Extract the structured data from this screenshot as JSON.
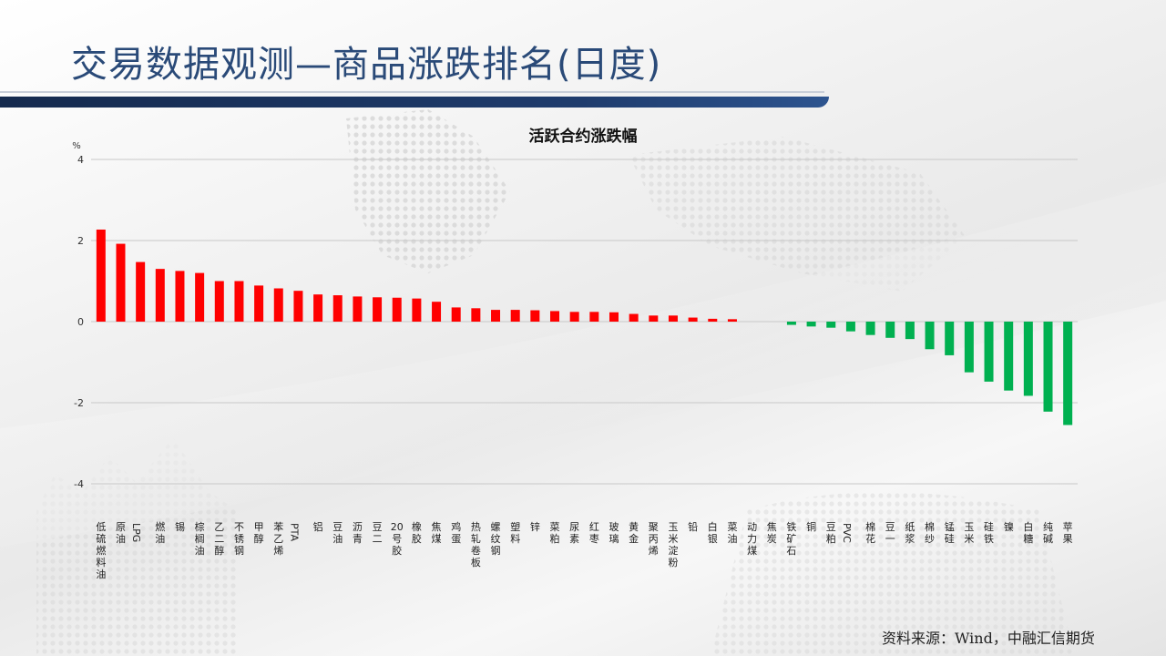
{
  "slide": {
    "title": "交易数据观测—商品涨跌排名(日度)",
    "source": "资料来源：Wind，中融汇信期货"
  },
  "colors": {
    "up": "#ff0000",
    "down": "#00b050",
    "title": "#2a4a78",
    "bar": "#1f3c6d"
  },
  "chart_data": {
    "type": "bar",
    "title": "活跃合约涨跌幅",
    "ylabel": "%",
    "xlabel": "",
    "ylim": [
      -4,
      4
    ],
    "yticks": [
      4,
      2,
      0,
      -2,
      -4
    ],
    "grid": true,
    "categories": [
      "低硫燃料油",
      "原油",
      "LPG",
      "燃油",
      "锡",
      "棕榈油",
      "乙二醇",
      "不锈钢",
      "甲醇",
      "苯乙烯",
      "PTA",
      "铝",
      "豆油",
      "沥青",
      "豆二",
      "20号胶",
      "橡胶",
      "焦煤",
      "鸡蛋",
      "热轧卷板",
      "螺纹钢",
      "塑料",
      "锌",
      "菜粕",
      "尿素",
      "红枣",
      "玻璃",
      "黄金",
      "聚丙烯",
      "玉米淀粉",
      "铅",
      "白银",
      "菜油",
      "动力煤",
      "焦炭",
      "铁矿石",
      "铜",
      "豆粕",
      "PVC",
      "棉花",
      "豆一",
      "纸浆",
      "棉纱",
      "锰硅",
      "玉米",
      "硅铁",
      "镍",
      "白糖",
      "纯碱",
      "苹果"
    ],
    "values": [
      2.27,
      1.92,
      1.47,
      1.3,
      1.25,
      1.2,
      1.0,
      1.0,
      0.89,
      0.82,
      0.76,
      0.67,
      0.65,
      0.62,
      0.6,
      0.59,
      0.57,
      0.49,
      0.35,
      0.33,
      0.29,
      0.29,
      0.28,
      0.26,
      0.24,
      0.24,
      0.23,
      0.19,
      0.15,
      0.15,
      0.1,
      0.07,
      0.06,
      0.0,
      0.0,
      -0.08,
      -0.12,
      -0.15,
      -0.24,
      -0.33,
      -0.4,
      -0.43,
      -0.68,
      -0.83,
      -1.25,
      -1.48,
      -1.7,
      -1.83,
      -2.22,
      -2.55
    ]
  }
}
